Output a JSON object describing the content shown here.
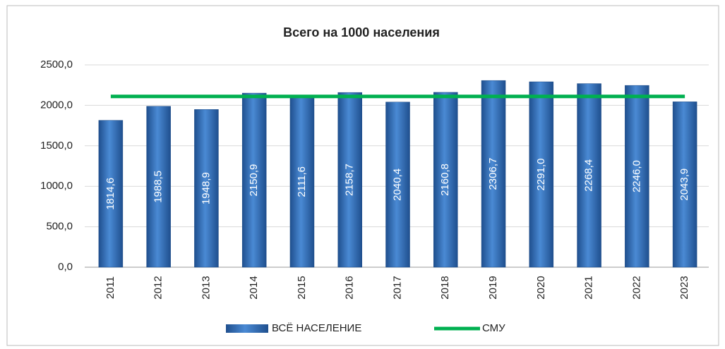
{
  "chart_data": {
    "type": "bar",
    "title": "Всего на 1000 населения",
    "categories": [
      "2011",
      "2012",
      "2013",
      "2014",
      "2015",
      "2016",
      "2017",
      "2018",
      "2019",
      "2020",
      "2021",
      "2022",
      "2023"
    ],
    "series": [
      {
        "name": "ВСЁ НАСЕЛЕНИЕ",
        "type": "bar",
        "color": "#2e6db4",
        "values": [
          1814.6,
          1988.5,
          1948.9,
          2150.9,
          2111.6,
          2158.7,
          2040.4,
          2160.8,
          2306.7,
          2291.0,
          2268.4,
          2246.0,
          2043.9
        ],
        "value_labels": [
          "1814,6",
          "1988,5",
          "1948,9",
          "2150,9",
          "2111,6",
          "2158,7",
          "2040,4",
          "2160,8",
          "2306,7",
          "2291,0",
          "2268,4",
          "2246,0",
          "2043,9"
        ]
      },
      {
        "name": "СМУ",
        "type": "line",
        "color": "#00b050",
        "values": [
          2110,
          2110,
          2110,
          2110,
          2110,
          2110,
          2110,
          2110,
          2110,
          2110,
          2110,
          2110,
          2110
        ]
      }
    ],
    "ylim": [
      0,
      2500
    ],
    "yticks": [
      {
        "value": 0,
        "label": "0,0"
      },
      {
        "value": 500,
        "label": "500,0"
      },
      {
        "value": 1000,
        "label": "1000,0"
      },
      {
        "value": 1500,
        "label": "1500,0"
      },
      {
        "value": 2000,
        "label": "2000,0"
      },
      {
        "value": 2500,
        "label": "2500,0"
      }
    ],
    "grid": true,
    "legend": "bottom"
  }
}
